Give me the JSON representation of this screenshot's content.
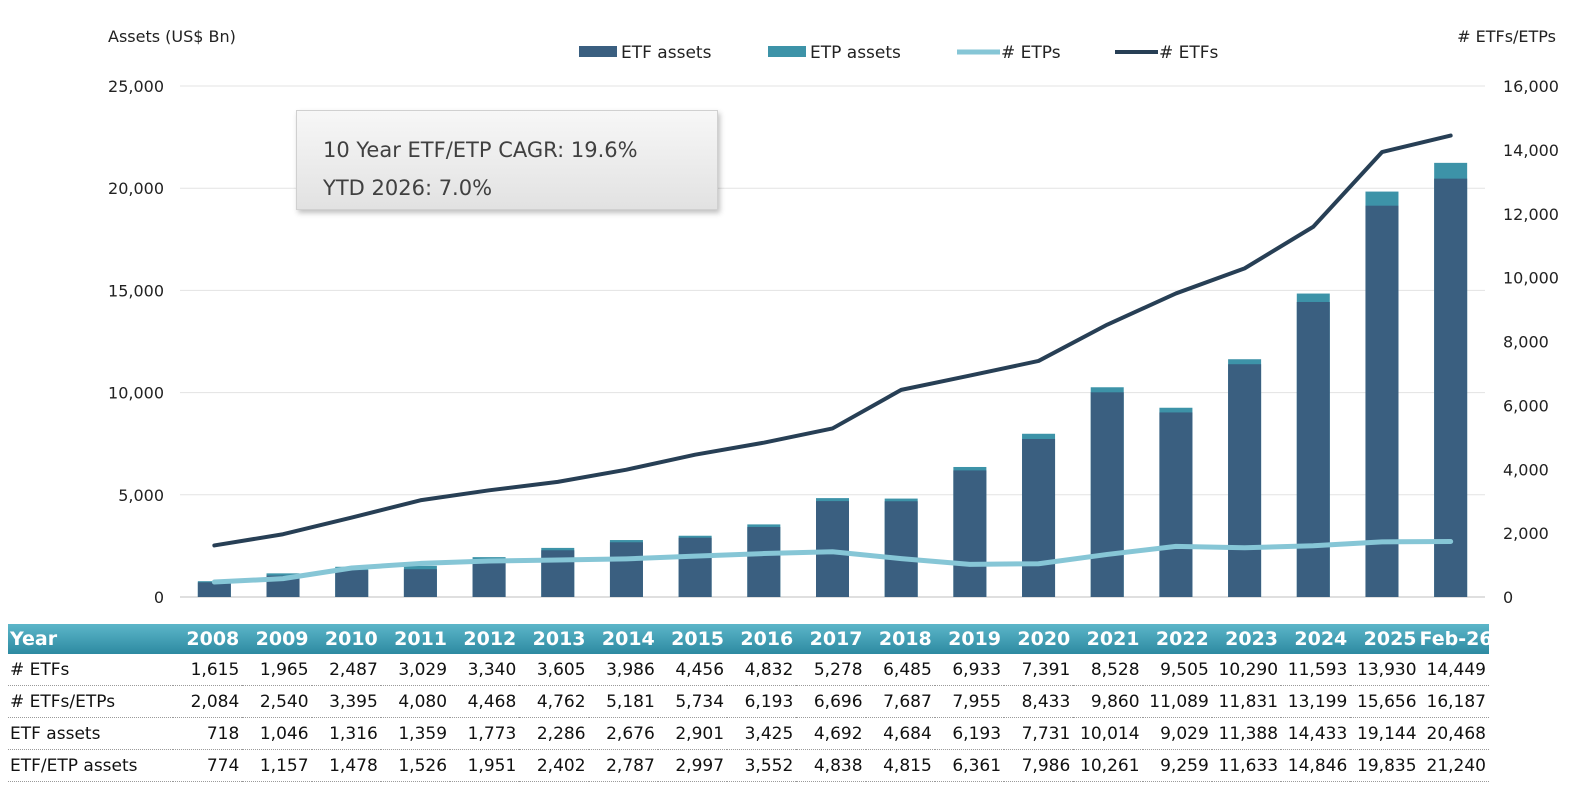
{
  "chart_data": {
    "type": "bar",
    "categories": [
      "2008",
      "2009",
      "2010",
      "2011",
      "2012",
      "2013",
      "2014",
      "2015",
      "2016",
      "2017",
      "2018",
      "2019",
      "2020",
      "2021",
      "2022",
      "2023",
      "2024",
      "2025",
      "Feb-26"
    ],
    "title": "",
    "ylabel": "Assets (US$ Bn)",
    "y2label": "# ETFs/ETPs",
    "ylim": [
      0,
      25000
    ],
    "y2lim": [
      0,
      16000
    ],
    "yticks": [
      "0",
      "5,000",
      "10,000",
      "15,000",
      "20,000",
      "25,000"
    ],
    "y2ticks": [
      "0",
      "2,000",
      "4,000",
      "6,000",
      "8,000",
      "10,000",
      "12,000",
      "14,000",
      "16,000"
    ],
    "grid": true,
    "legend_position": "top",
    "series": [
      {
        "name": "ETF assets",
        "kind": "bar",
        "axis": "left",
        "color": "#3a5f80",
        "values": [
          718,
          1046,
          1316,
          1359,
          1773,
          2286,
          2676,
          2901,
          3425,
          4692,
          4684,
          6193,
          7731,
          10014,
          9029,
          11388,
          14433,
          19144,
          20468
        ]
      },
      {
        "name": "ETP assets",
        "kind": "bar",
        "axis": "left",
        "color": "#3d93a8",
        "values": [
          774,
          1157,
          1478,
          1526,
          1951,
          2402,
          2787,
          2997,
          3552,
          4838,
          4815,
          6361,
          7986,
          10261,
          9259,
          11633,
          14846,
          19835,
          21240
        ]
      },
      {
        "name": "# ETPs",
        "kind": "line",
        "axis": "right",
        "color": "#86c6d6",
        "values": [
          469,
          575,
          908,
          1051,
          1128,
          1157,
          1195,
          1278,
          1361,
          1418,
          1202,
          1022,
          1042,
          1332,
          1584,
          1541,
          1606,
          1726,
          1738
        ]
      },
      {
        "name": "# ETFs",
        "kind": "line",
        "axis": "right",
        "color": "#273f55",
        "values": [
          1615,
          1965,
          2487,
          3029,
          3340,
          3605,
          3986,
          4456,
          4832,
          5278,
          6485,
          6933,
          7391,
          8528,
          9505,
          10290,
          11593,
          13930,
          14449
        ]
      }
    ],
    "legend": [
      "ETF assets",
      "ETP assets",
      "# ETPs",
      "# ETFs"
    ]
  },
  "annotation": {
    "line1": "10 Year ETF/ETP CAGR: 19.6%",
    "line2": "YTD 2026: 7.0%"
  },
  "table": {
    "header": [
      "Year",
      "2008",
      "2009",
      "2010",
      "2011",
      "2012",
      "2013",
      "2014",
      "2015",
      "2016",
      "2017",
      "2018",
      "2019",
      "2020",
      "2021",
      "2022",
      "2023",
      "2024",
      "2025",
      "Feb-26"
    ],
    "rows": [
      [
        "# ETFs",
        "1,615",
        "1,965",
        "2,487",
        "3,029",
        "3,340",
        "3,605",
        "3,986",
        "4,456",
        "4,832",
        "5,278",
        "6,485",
        "6,933",
        "7,391",
        "8,528",
        "9,505",
        "10,290",
        "11,593",
        "13,930",
        "14,449"
      ],
      [
        "# ETFs/ETPs",
        "2,084",
        "2,540",
        "3,395",
        "4,080",
        "4,468",
        "4,762",
        "5,181",
        "5,734",
        "6,193",
        "6,696",
        "7,687",
        "7,955",
        "8,433",
        "9,860",
        "11,089",
        "11,831",
        "13,199",
        "15,656",
        "16,187"
      ],
      [
        "ETF assets",
        "718",
        "1,046",
        "1,316",
        "1,359",
        "1,773",
        "2,286",
        "2,676",
        "2,901",
        "3,425",
        "4,692",
        "4,684",
        "6,193",
        "7,731",
        "10,014",
        "9,029",
        "11,388",
        "14,433",
        "19,144",
        "20,468"
      ],
      [
        "ETF/ETP assets",
        "774",
        "1,157",
        "1,478",
        "1,526",
        "1,951",
        "2,402",
        "2,787",
        "2,997",
        "3,552",
        "4,838",
        "4,815",
        "6,361",
        "7,986",
        "10,261",
        "9,259",
        "11,633",
        "14,846",
        "19,835",
        "21,240"
      ]
    ]
  }
}
